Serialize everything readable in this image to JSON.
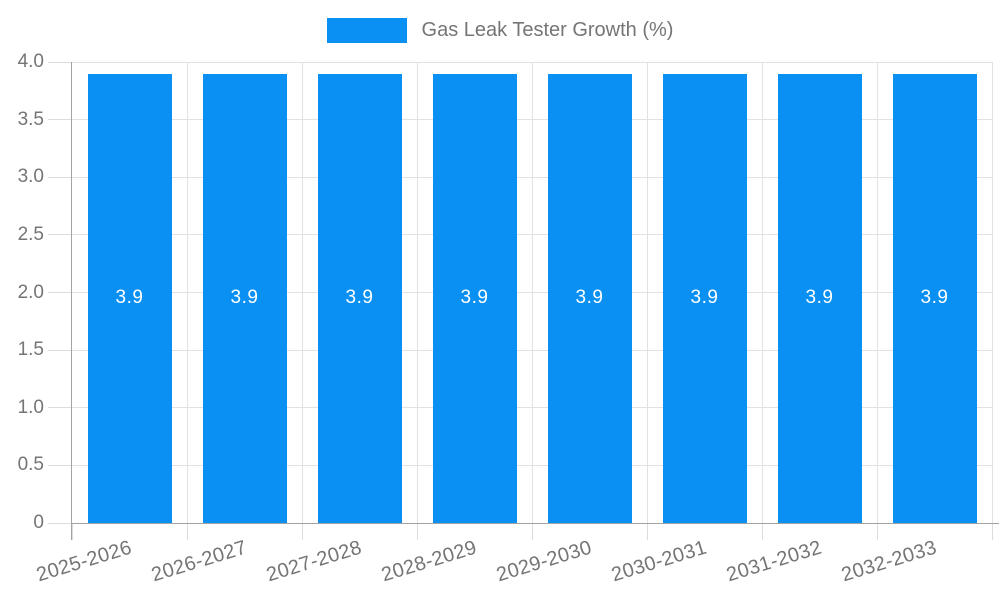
{
  "chart_data": {
    "type": "bar",
    "title": "Gas Leak Tester Growth (%)",
    "legend": {
      "label": "Gas Leak Tester Growth (%)",
      "position": "top-center"
    },
    "categories": [
      "2025-2026",
      "2026-2027",
      "2027-2028",
      "2028-2029",
      "2029-2030",
      "2030-2031",
      "2031-2032",
      "2032-2033"
    ],
    "series": [
      {
        "name": "Gas Leak Tester Growth (%)",
        "values": [
          3.9,
          3.9,
          3.9,
          3.9,
          3.9,
          3.9,
          3.9,
          3.9
        ]
      }
    ],
    "bar_labels": [
      "3.9",
      "3.9",
      "3.9",
      "3.9",
      "3.9",
      "3.9",
      "3.9",
      "3.9"
    ],
    "xlabel": "",
    "ylabel": "",
    "ylim": [
      0,
      4.0
    ],
    "yticks": {
      "values": [
        0,
        0.5,
        1.0,
        1.5,
        2.0,
        2.5,
        3.0,
        3.5,
        4.0
      ],
      "labels": [
        "0",
        "0.5",
        "1.0",
        "1.5",
        "2.0",
        "2.5",
        "3.0",
        "3.5",
        "4.0"
      ]
    },
    "grid": {
      "horizontal": true,
      "vertical": true
    },
    "colors": {
      "bar": "#0a90f2",
      "bar_label": "#ffffff",
      "grid_line": "#e2e2e2",
      "tick_line": "#dcdcdc",
      "axis_line": "#a3a3a3",
      "text": "#757575",
      "background": "#ffffff"
    }
  }
}
